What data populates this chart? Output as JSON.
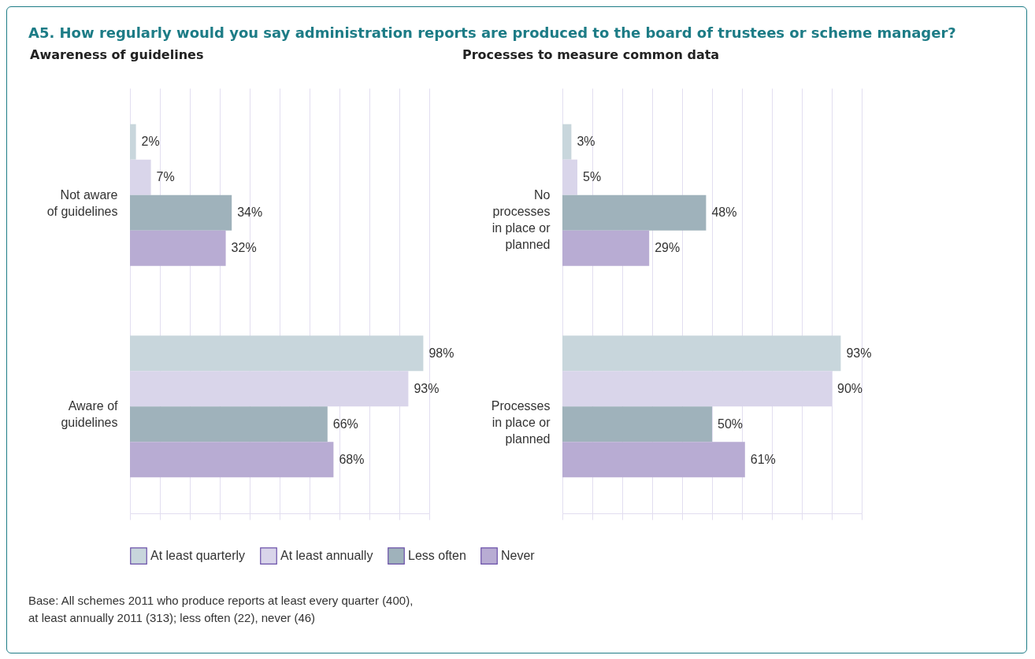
{
  "chart_data": [
    {
      "type": "bar",
      "orientation": "horizontal",
      "title": "A5. How regularly would you say administration reports are produced to the board of trustees or scheme manager?",
      "subtitle": "Awareness of guidelines",
      "categories": [
        "Not aware\nof guidelines",
        "Aware of\nguidelines"
      ],
      "series": [
        {
          "name": "At least quarterly",
          "color": "#c8d6dc",
          "values": [
            2,
            98
          ],
          "value_labels": [
            "2%",
            "98%"
          ]
        },
        {
          "name": "At least annually",
          "color": "#d9d5ea",
          "values": [
            7,
            93
          ],
          "value_labels": [
            "7%",
            "93%"
          ]
        },
        {
          "name": "Less often",
          "color": "#9fb2bb",
          "values": [
            34,
            66
          ],
          "value_labels": [
            "34%",
            "66%"
          ]
        },
        {
          "name": "Never",
          "color": "#b8acd3",
          "values": [
            32,
            68
          ],
          "value_labels": [
            "32%",
            "68%"
          ]
        }
      ],
      "xlim": [
        0,
        100
      ],
      "xticks": [
        {
          "value": 0,
          "label": null
        },
        {
          "value": 10,
          "label": null
        },
        {
          "value": 20,
          "label": null
        },
        {
          "value": 30,
          "label": null
        },
        {
          "value": 40,
          "label": null
        },
        {
          "value": 50,
          "label": null
        },
        {
          "value": 60,
          "label": null
        },
        {
          "value": 70,
          "label": null
        },
        {
          "value": 80,
          "label": null
        },
        {
          "value": 90,
          "label": null
        },
        {
          "value": 100,
          "label": null
        }
      ],
      "grid": "x",
      "tick_labels": "y",
      "legend": "bottom",
      "annotations": [
        "Base: All schemes 2011 who produce reports at least every quarter (400),\nat least annually 2011 (313); less often (22), never (46)"
      ]
    },
    {
      "type": "bar",
      "orientation": "horizontal",
      "title": "Processes to measure common data",
      "categories": [
        "No\nprocesses\nin place or\nplanned",
        "Processes\nin place or\nplanned"
      ],
      "series": [
        {
          "name": "At least quarterly",
          "color": "#c8d6dc",
          "values": [
            3,
            93
          ],
          "value_labels": [
            "3%",
            "93%"
          ]
        },
        {
          "name": "At least annually",
          "color": "#d9d5ea",
          "values": [
            5,
            90
          ],
          "value_labels": [
            "5%",
            "90%"
          ]
        },
        {
          "name": "Less often",
          "color": "#9fb2bb",
          "values": [
            48,
            50
          ],
          "value_labels": [
            "48%",
            "50%"
          ]
        },
        {
          "name": "Never",
          "color": "#b8acd3",
          "values": [
            29,
            61
          ],
          "value_labels": [
            "29%",
            "61%"
          ]
        }
      ],
      "xlim": [
        0,
        100
      ],
      "xticks": [
        {
          "value": 0,
          "label": null
        },
        {
          "value": 10,
          "label": null
        },
        {
          "value": 20,
          "label": null
        },
        {
          "value": 30,
          "label": null
        },
        {
          "value": 40,
          "label": null
        },
        {
          "value": 50,
          "label": null
        },
        {
          "value": 60,
          "label": null
        },
        {
          "value": 70,
          "label": null
        },
        {
          "value": 80,
          "label": null
        },
        {
          "value": 90,
          "label": null
        },
        {
          "value": 100,
          "label": null
        }
      ],
      "grid": "x",
      "tick_labels": "y",
      "legend": "bottom"
    }
  ]
}
